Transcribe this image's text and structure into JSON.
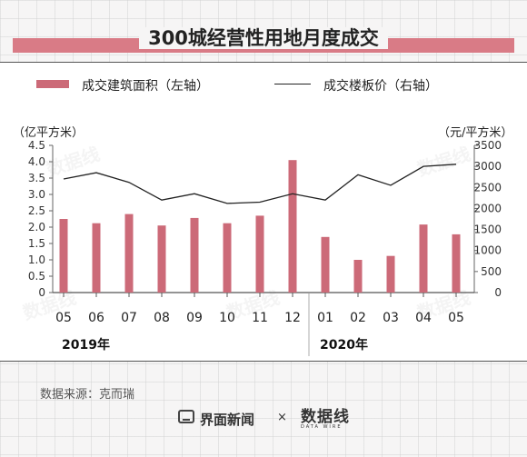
{
  "title": "300城经营性用地月度成交",
  "legend": {
    "bar_label": "成交建筑面积（左轴）",
    "line_label": "成交楼板价（右轴）"
  },
  "units": {
    "left": "（亿平方米）",
    "right": "（元/平方米）"
  },
  "years": [
    "2019年",
    "2020年"
  ],
  "source": "数据来源：克而瑞",
  "footer": {
    "brand": "界面新闻",
    "times": "×",
    "partner_logo": "数据线",
    "partner_sub": "DATA WIRE"
  },
  "watermark_text": "数据线",
  "colors": {
    "bar": "#cc6a78",
    "line": "#222222",
    "title_band": "#d97b86"
  },
  "chart_data": {
    "type": "bar",
    "categories": [
      "05",
      "06",
      "07",
      "08",
      "09",
      "10",
      "11",
      "12",
      "01",
      "02",
      "03",
      "04",
      "05"
    ],
    "series": [
      {
        "name": "成交建筑面积（左轴）",
        "type": "bar",
        "axis": "left",
        "values": [
          2.25,
          2.12,
          2.4,
          2.05,
          2.28,
          2.12,
          2.35,
          4.05,
          1.7,
          1.0,
          1.12,
          2.08,
          1.78
        ]
      },
      {
        "name": "成交楼板价（右轴）",
        "type": "line",
        "axis": "right",
        "values": [
          2700,
          2850,
          2620,
          2200,
          2350,
          2120,
          2150,
          2350,
          2200,
          2800,
          2550,
          3000,
          3050
        ]
      }
    ],
    "y_left": {
      "min": 0,
      "max": 4.5,
      "ticks": [
        "0",
        "0.5",
        "1.0",
        "1.5",
        "2.0",
        "2.5",
        "3.0",
        "3.5",
        "4.0",
        "4.5"
      ]
    },
    "y_right": {
      "min": 0,
      "max": 3500,
      "ticks": [
        "0",
        "500",
        "1000",
        "1500",
        "2000",
        "2500",
        "3000",
        "3500"
      ]
    },
    "grid": false,
    "legend_position": "top"
  }
}
